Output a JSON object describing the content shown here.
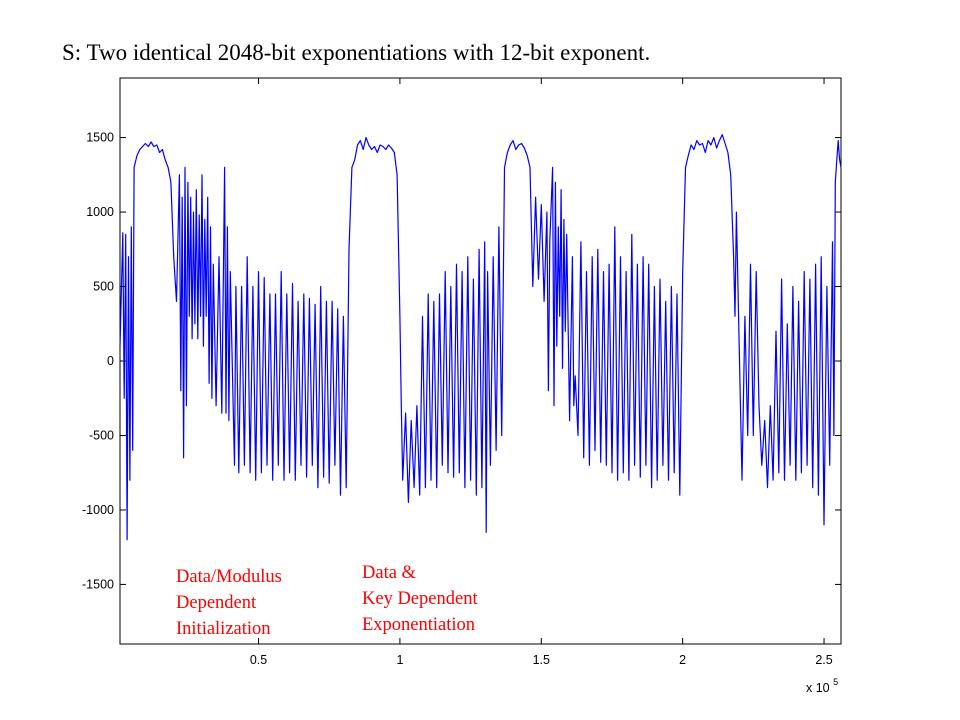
{
  "slide": {
    "title": "S: Two identical 2048-bit exponentiations with 12-bit exponent."
  },
  "chart_data": {
    "type": "line",
    "title": "",
    "xlabel": "",
    "ylabel": "",
    "x_multiplier_label": "x 10",
    "x_multiplier_exponent": "5",
    "xlim": [
      0.01,
      2.56
    ],
    "ylim": [
      -1900,
      1900
    ],
    "x_ticks": [
      {
        "value": 0.5,
        "label": "0.5"
      },
      {
        "value": 1.0,
        "label": "1"
      },
      {
        "value": 1.5,
        "label": "1.5"
      },
      {
        "value": 2.0,
        "label": "2"
      },
      {
        "value": 2.5,
        "label": "2.5"
      }
    ],
    "y_ticks": [
      {
        "value": 1500,
        "label": "1500"
      },
      {
        "value": 1000,
        "label": "1000"
      },
      {
        "value": 500,
        "label": "500"
      },
      {
        "value": 0,
        "label": "0"
      },
      {
        "value": -500,
        "label": "-500"
      },
      {
        "value": -1000,
        "label": "-1000"
      },
      {
        "value": -1500,
        "label": "-1500"
      }
    ],
    "grid": false,
    "line_color": "#0000ff",
    "series": [
      {
        "points": [
          [
            0.01,
            100
          ],
          [
            0.02,
            860
          ],
          [
            0.025,
            -250
          ],
          [
            0.03,
            850
          ],
          [
            0.035,
            -1200
          ],
          [
            0.04,
            700
          ],
          [
            0.045,
            -800
          ],
          [
            0.05,
            900
          ],
          [
            0.055,
            -600
          ],
          [
            0.06,
            1300
          ],
          [
            0.07,
            1380
          ],
          [
            0.08,
            1420
          ],
          [
            0.09,
            1440
          ],
          [
            0.1,
            1460
          ],
          [
            0.11,
            1440
          ],
          [
            0.12,
            1470
          ],
          [
            0.13,
            1440
          ],
          [
            0.14,
            1450
          ],
          [
            0.15,
            1400
          ],
          [
            0.16,
            1420
          ],
          [
            0.17,
            1350
          ],
          [
            0.18,
            1300
          ],
          [
            0.19,
            1200
          ],
          [
            0.2,
            700
          ],
          [
            0.21,
            400
          ],
          [
            0.22,
            1250
          ],
          [
            0.225,
            -200
          ],
          [
            0.23,
            1100
          ],
          [
            0.235,
            -650
          ],
          [
            0.24,
            1300
          ],
          [
            0.245,
            -300
          ],
          [
            0.25,
            1200
          ],
          [
            0.255,
            300
          ],
          [
            0.26,
            1100
          ],
          [
            0.265,
            150
          ],
          [
            0.27,
            1000
          ],
          [
            0.275,
            250
          ],
          [
            0.28,
            1150
          ],
          [
            0.285,
            150
          ],
          [
            0.29,
            980
          ],
          [
            0.295,
            300
          ],
          [
            0.3,
            1250
          ],
          [
            0.305,
            100
          ],
          [
            0.31,
            950
          ],
          [
            0.315,
            300
          ],
          [
            0.32,
            1100
          ],
          [
            0.325,
            -150
          ],
          [
            0.33,
            900
          ],
          [
            0.335,
            -250
          ],
          [
            0.34,
            650
          ],
          [
            0.35,
            -300
          ],
          [
            0.36,
            700
          ],
          [
            0.37,
            -350
          ],
          [
            0.38,
            1300
          ],
          [
            0.385,
            -350
          ],
          [
            0.39,
            900
          ],
          [
            0.395,
            -400
          ],
          [
            0.4,
            600
          ],
          [
            0.41,
            -280
          ],
          [
            0.415,
            -700
          ],
          [
            0.42,
            500
          ],
          [
            0.43,
            -750
          ],
          [
            0.44,
            500
          ],
          [
            0.45,
            -700
          ],
          [
            0.46,
            700
          ],
          [
            0.47,
            -750
          ],
          [
            0.48,
            500
          ],
          [
            0.49,
            -800
          ],
          [
            0.5,
            600
          ],
          [
            0.51,
            -750
          ],
          [
            0.52,
            560
          ],
          [
            0.53,
            -700
          ],
          [
            0.54,
            450
          ],
          [
            0.55,
            -800
          ],
          [
            0.56,
            450
          ],
          [
            0.57,
            -700
          ],
          [
            0.58,
            600
          ],
          [
            0.59,
            -800
          ],
          [
            0.6,
            450
          ],
          [
            0.61,
            -750
          ],
          [
            0.62,
            520
          ],
          [
            0.63,
            -800
          ],
          [
            0.64,
            400
          ],
          [
            0.65,
            -700
          ],
          [
            0.66,
            450
          ],
          [
            0.67,
            -780
          ],
          [
            0.68,
            420
          ],
          [
            0.69,
            -700
          ],
          [
            0.7,
            380
          ],
          [
            0.71,
            -850
          ],
          [
            0.72,
            500
          ],
          [
            0.73,
            -780
          ],
          [
            0.74,
            400
          ],
          [
            0.75,
            -820
          ],
          [
            0.76,
            400
          ],
          [
            0.77,
            -700
          ],
          [
            0.78,
            350
          ],
          [
            0.79,
            -900
          ],
          [
            0.8,
            300
          ],
          [
            0.81,
            -850
          ],
          [
            0.82,
            750
          ],
          [
            0.83,
            1300
          ],
          [
            0.84,
            1350
          ],
          [
            0.85,
            1450
          ],
          [
            0.86,
            1480
          ],
          [
            0.87,
            1420
          ],
          [
            0.88,
            1500
          ],
          [
            0.89,
            1450
          ],
          [
            0.9,
            1420
          ],
          [
            0.91,
            1440
          ],
          [
            0.92,
            1400
          ],
          [
            0.93,
            1450
          ],
          [
            0.94,
            1440
          ],
          [
            0.95,
            1420
          ],
          [
            0.96,
            1450
          ],
          [
            0.97,
            1430
          ],
          [
            0.98,
            1400
          ],
          [
            0.99,
            1250
          ],
          [
            1.0,
            300
          ],
          [
            1.005,
            -300
          ],
          [
            1.01,
            -800
          ],
          [
            1.02,
            -350
          ],
          [
            1.03,
            -950
          ],
          [
            1.04,
            -400
          ],
          [
            1.05,
            -850
          ],
          [
            1.06,
            -300
          ],
          [
            1.07,
            -900
          ],
          [
            1.08,
            300
          ],
          [
            1.09,
            -850
          ],
          [
            1.1,
            450
          ],
          [
            1.11,
            -800
          ],
          [
            1.12,
            400
          ],
          [
            1.13,
            -850
          ],
          [
            1.14,
            450
          ],
          [
            1.15,
            -700
          ],
          [
            1.16,
            600
          ],
          [
            1.17,
            -750
          ],
          [
            1.18,
            500
          ],
          [
            1.19,
            -780
          ],
          [
            1.2,
            650
          ],
          [
            1.21,
            -750
          ],
          [
            1.22,
            600
          ],
          [
            1.23,
            -850
          ],
          [
            1.24,
            700
          ],
          [
            1.25,
            -800
          ],
          [
            1.26,
            550
          ],
          [
            1.27,
            -900
          ],
          [
            1.28,
            750
          ],
          [
            1.29,
            -850
          ],
          [
            1.3,
            800
          ],
          [
            1.305,
            -1150
          ],
          [
            1.31,
            600
          ],
          [
            1.32,
            -700
          ],
          [
            1.33,
            700
          ],
          [
            1.34,
            -600
          ],
          [
            1.35,
            900
          ],
          [
            1.36,
            -500
          ],
          [
            1.37,
            1300
          ],
          [
            1.38,
            1400
          ],
          [
            1.39,
            1450
          ],
          [
            1.4,
            1480
          ],
          [
            1.41,
            1420
          ],
          [
            1.42,
            1450
          ],
          [
            1.43,
            1460
          ],
          [
            1.44,
            1430
          ],
          [
            1.45,
            1380
          ],
          [
            1.46,
            1300
          ],
          [
            1.47,
            500
          ],
          [
            1.48,
            1100
          ],
          [
            1.49,
            550
          ],
          [
            1.5,
            1050
          ],
          [
            1.51,
            400
          ],
          [
            1.52,
            1000
          ],
          [
            1.525,
            -200
          ],
          [
            1.53,
            800
          ],
          [
            1.54,
            1300
          ],
          [
            1.545,
            -300
          ],
          [
            1.55,
            1200
          ],
          [
            1.555,
            100
          ],
          [
            1.56,
            900
          ],
          [
            1.565,
            300
          ],
          [
            1.57,
            1150
          ],
          [
            1.575,
            -50
          ],
          [
            1.58,
            950
          ],
          [
            1.585,
            200
          ],
          [
            1.59,
            850
          ],
          [
            1.6,
            -400
          ],
          [
            1.61,
            700
          ],
          [
            1.615,
            -300
          ],
          [
            1.62,
            -100
          ],
          [
            1.63,
            -500
          ],
          [
            1.64,
            800
          ],
          [
            1.65,
            -650
          ],
          [
            1.66,
            600
          ],
          [
            1.67,
            -700
          ],
          [
            1.68,
            700
          ],
          [
            1.69,
            -600
          ],
          [
            1.7,
            750
          ],
          [
            1.71,
            -680
          ],
          [
            1.72,
            600
          ],
          [
            1.73,
            -700
          ],
          [
            1.74,
            650
          ],
          [
            1.75,
            -750
          ],
          [
            1.76,
            900
          ],
          [
            1.77,
            -800
          ],
          [
            1.78,
            700
          ],
          [
            1.79,
            -750
          ],
          [
            1.8,
            600
          ],
          [
            1.81,
            -800
          ],
          [
            1.82,
            850
          ],
          [
            1.83,
            -700
          ],
          [
            1.84,
            650
          ],
          [
            1.85,
            -780
          ],
          [
            1.86,
            700
          ],
          [
            1.87,
            -700
          ],
          [
            1.88,
            650
          ],
          [
            1.89,
            -850
          ],
          [
            1.9,
            500
          ],
          [
            1.91,
            -800
          ],
          [
            1.92,
            550
          ],
          [
            1.93,
            -700
          ],
          [
            1.94,
            400
          ],
          [
            1.95,
            -800
          ],
          [
            1.96,
            500
          ],
          [
            1.97,
            -750
          ],
          [
            1.98,
            450
          ],
          [
            1.99,
            -900
          ],
          [
            2.0,
            600
          ],
          [
            2.01,
            1300
          ],
          [
            2.02,
            1380
          ],
          [
            2.03,
            1450
          ],
          [
            2.04,
            1420
          ],
          [
            2.05,
            1480
          ],
          [
            2.06,
            1450
          ],
          [
            2.07,
            1460
          ],
          [
            2.08,
            1400
          ],
          [
            2.09,
            1480
          ],
          [
            2.1,
            1450
          ],
          [
            2.11,
            1500
          ],
          [
            2.12,
            1430
          ],
          [
            2.13,
            1480
          ],
          [
            2.14,
            1520
          ],
          [
            2.15,
            1460
          ],
          [
            2.16,
            1400
          ],
          [
            2.17,
            1250
          ],
          [
            2.18,
            700
          ],
          [
            2.185,
            300
          ],
          [
            2.19,
            1000
          ],
          [
            2.2,
            100
          ],
          [
            2.21,
            -800
          ],
          [
            2.22,
            300
          ],
          [
            2.23,
            -500
          ],
          [
            2.24,
            650
          ],
          [
            2.25,
            -500
          ],
          [
            2.26,
            600
          ],
          [
            2.27,
            -300
          ],
          [
            2.28,
            -700
          ],
          [
            2.29,
            -400
          ],
          [
            2.3,
            -850
          ],
          [
            2.31,
            -300
          ],
          [
            2.32,
            -800
          ],
          [
            2.33,
            200
          ],
          [
            2.34,
            -750
          ],
          [
            2.35,
            550
          ],
          [
            2.36,
            -800
          ],
          [
            2.37,
            250
          ],
          [
            2.38,
            -700
          ],
          [
            2.39,
            500
          ],
          [
            2.4,
            -800
          ],
          [
            2.41,
            400
          ],
          [
            2.42,
            -750
          ],
          [
            2.43,
            600
          ],
          [
            2.44,
            -700
          ],
          [
            2.45,
            550
          ],
          [
            2.46,
            -850
          ],
          [
            2.47,
            650
          ],
          [
            2.48,
            -900
          ],
          [
            2.49,
            700
          ],
          [
            2.5,
            -1100
          ],
          [
            2.51,
            500
          ],
          [
            2.52,
            -700
          ],
          [
            2.53,
            800
          ],
          [
            2.535,
            -500
          ],
          [
            2.54,
            1200
          ],
          [
            2.545,
            1350
          ],
          [
            2.55,
            1480
          ],
          [
            2.555,
            1350
          ],
          [
            2.56,
            1300
          ]
        ]
      }
    ]
  },
  "annotations": {
    "initialization": [
      "Data/Modulus",
      "Dependent",
      "Initialization"
    ],
    "exponentiation": [
      "Data &",
      "Key Dependent",
      "Exponentiation"
    ]
  }
}
